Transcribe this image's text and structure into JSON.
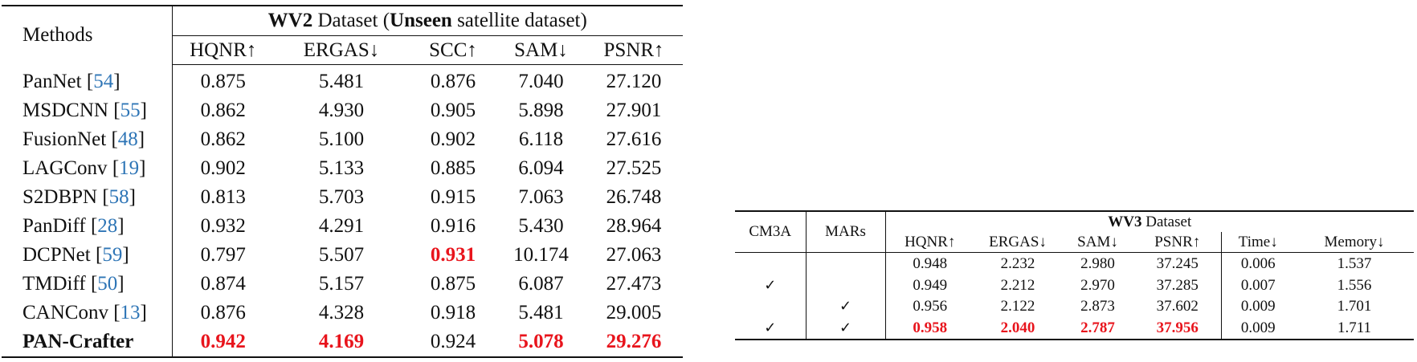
{
  "table1": {
    "methods_header": "Methods",
    "group_title_bold": "WV2",
    "group_title_mid": " Dataset (",
    "group_title_bold2": "Unseen",
    "group_title_end": " satellite dataset)",
    "columns": [
      "HQNR↑",
      "ERGAS↓",
      "SCC↑",
      "SAM↓",
      "PSNR↑"
    ],
    "rows": [
      {
        "method": "PanNet",
        "cite": "54",
        "values": [
          "0.875",
          "5.481",
          "0.876",
          "7.040",
          "27.120"
        ],
        "highlight": [
          false,
          false,
          false,
          false,
          false
        ],
        "bold_method": false
      },
      {
        "method": "MSDCNN",
        "cite": "55",
        "values": [
          "0.862",
          "4.930",
          "0.905",
          "5.898",
          "27.901"
        ],
        "highlight": [
          false,
          false,
          false,
          false,
          false
        ],
        "bold_method": false
      },
      {
        "method": "FusionNet",
        "cite": "48",
        "values": [
          "0.862",
          "5.100",
          "0.902",
          "6.118",
          "27.616"
        ],
        "highlight": [
          false,
          false,
          false,
          false,
          false
        ],
        "bold_method": false
      },
      {
        "method": "LAGConv",
        "cite": "19",
        "values": [
          "0.902",
          "5.133",
          "0.885",
          "6.094",
          "27.525"
        ],
        "highlight": [
          false,
          false,
          false,
          false,
          false
        ],
        "bold_method": false
      },
      {
        "method": "S2DBPN",
        "cite": "58",
        "values": [
          "0.813",
          "5.703",
          "0.915",
          "7.063",
          "26.748"
        ],
        "highlight": [
          false,
          false,
          false,
          false,
          false
        ],
        "bold_method": false
      },
      {
        "method": "PanDiff",
        "cite": "28",
        "values": [
          "0.932",
          "4.291",
          "0.916",
          "5.430",
          "28.964"
        ],
        "highlight": [
          false,
          false,
          false,
          false,
          false
        ],
        "bold_method": false
      },
      {
        "method": "DCPNet",
        "cite": "59",
        "values": [
          "0.797",
          "5.507",
          "0.931",
          "10.174",
          "27.063"
        ],
        "highlight": [
          false,
          false,
          true,
          false,
          false
        ],
        "bold_method": false
      },
      {
        "method": "TMDiff",
        "cite": "50",
        "values": [
          "0.874",
          "5.157",
          "0.875",
          "6.087",
          "27.473"
        ],
        "highlight": [
          false,
          false,
          false,
          false,
          false
        ],
        "bold_method": false
      },
      {
        "method": "CANConv",
        "cite": "13",
        "values": [
          "0.876",
          "4.328",
          "0.918",
          "5.481",
          "29.005"
        ],
        "highlight": [
          false,
          false,
          false,
          false,
          false
        ],
        "bold_method": false
      },
      {
        "method": "PAN-Crafter",
        "cite": "",
        "values": [
          "0.942",
          "4.169",
          "0.924",
          "5.078",
          "29.276"
        ],
        "highlight": [
          true,
          true,
          false,
          true,
          true
        ],
        "bold_method": true
      }
    ]
  },
  "table2": {
    "col_cm3a": "CM3A",
    "col_mars": "MARs",
    "group_title_bold": "WV3",
    "group_title_rest": " Dataset",
    "columns": [
      "HQNR↑",
      "ERGAS↓",
      "SAM↓",
      "PSNR↑",
      "Time↓",
      "Memory↓"
    ],
    "check": "✓",
    "rows": [
      {
        "cm3a": false,
        "mars": false,
        "values": [
          "0.948",
          "2.232",
          "2.980",
          "37.245",
          "0.006",
          "1.537"
        ],
        "highlight": [
          false,
          false,
          false,
          false,
          false,
          false
        ]
      },
      {
        "cm3a": true,
        "mars": false,
        "values": [
          "0.949",
          "2.212",
          "2.970",
          "37.285",
          "0.007",
          "1.556"
        ],
        "highlight": [
          false,
          false,
          false,
          false,
          false,
          false
        ]
      },
      {
        "cm3a": false,
        "mars": true,
        "values": [
          "0.956",
          "2.122",
          "2.873",
          "37.602",
          "0.009",
          "1.701"
        ],
        "highlight": [
          false,
          false,
          false,
          false,
          false,
          false
        ]
      },
      {
        "cm3a": true,
        "mars": true,
        "values": [
          "0.958",
          "2.040",
          "2.787",
          "37.956",
          "0.009",
          "1.711"
        ],
        "highlight": [
          true,
          true,
          true,
          true,
          false,
          false
        ]
      }
    ]
  },
  "colors": {
    "highlight": "#e8141c",
    "citation": "#2e75b6"
  }
}
